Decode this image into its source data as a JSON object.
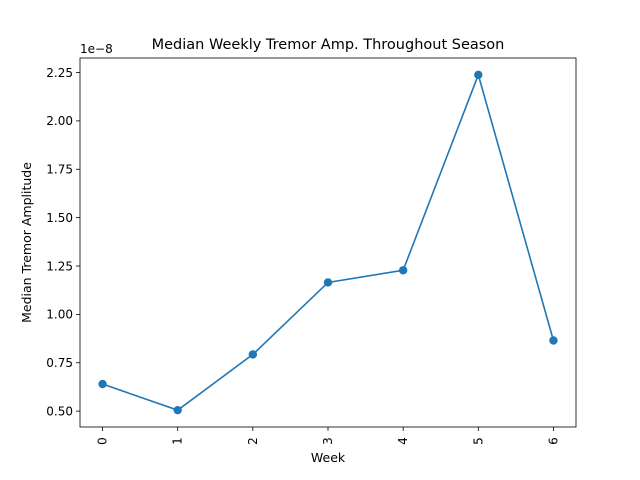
{
  "chart_data": {
    "type": "line",
    "title": "Median Weekly Tremor Amp. Throughout Season",
    "xlabel": "Week",
    "ylabel": "Median Tremor Amplitude",
    "offset_label": "1e−8",
    "x": [
      0,
      1,
      2,
      3,
      4,
      5,
      6
    ],
    "x_tick_labels": [
      "0",
      "1",
      "2",
      "3",
      "4",
      "5",
      "6"
    ],
    "values": [
      0.64,
      0.505,
      0.793,
      1.165,
      1.228,
      2.238,
      0.865
    ],
    "y_ticks": [
      0.5,
      0.75,
      1.0,
      1.25,
      1.5,
      1.75,
      2.0,
      2.25
    ],
    "y_tick_labels": [
      "0.50",
      "0.75",
      "1.00",
      "1.25",
      "1.50",
      "1.75",
      "2.00",
      "2.25"
    ],
    "xlim": [
      -0.3,
      6.3
    ],
    "ylim": [
      0.418,
      2.325
    ],
    "grid": false,
    "color": "#1f77b4"
  }
}
